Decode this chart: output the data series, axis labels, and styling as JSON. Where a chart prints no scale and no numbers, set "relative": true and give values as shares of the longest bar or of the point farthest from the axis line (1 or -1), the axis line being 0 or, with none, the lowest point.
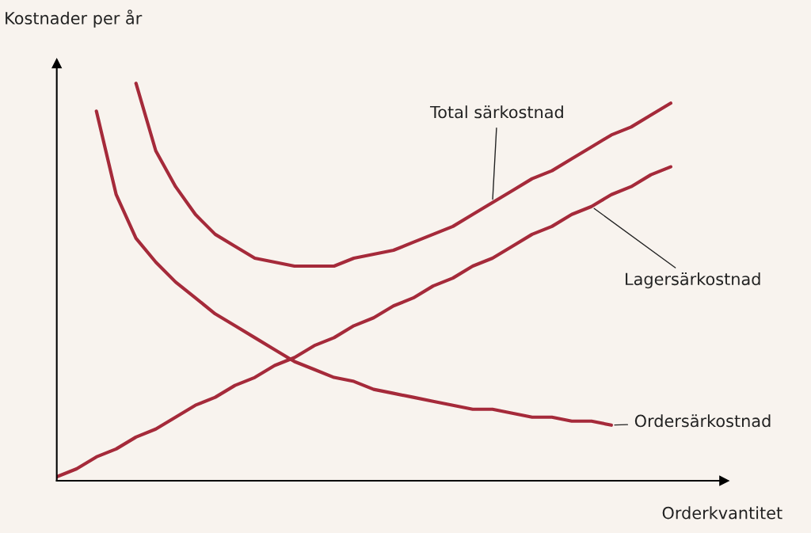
{
  "chart_data": {
    "type": "line",
    "relative": true,
    "xlabel": "Orderkvantitet",
    "ylabel": "Kostnader per år",
    "categories": [
      null,
      null,
      null,
      null,
      null,
      null,
      null,
      null,
      null,
      null,
      null,
      null,
      null,
      null,
      null,
      null,
      null,
      null,
      null,
      null,
      null,
      null,
      null,
      null,
      null,
      null,
      null,
      null,
      null,
      null,
      null,
      null
    ],
    "series": [
      {
        "name": "Total särkostnad",
        "color": "#a52a3a",
        "values": [
          null,
          null,
          null,
          null,
          1.0,
          0.83,
          0.74,
          0.67,
          0.62,
          0.59,
          0.56,
          0.55,
          0.54,
          0.54,
          0.54,
          0.56,
          0.57,
          0.58,
          0.6,
          0.62,
          0.64,
          0.67,
          0.7,
          0.73,
          0.76,
          0.78,
          0.81,
          0.84,
          0.87,
          0.89,
          0.92,
          0.95
        ]
      },
      {
        "name": "Ordersärkostnad",
        "color": "#a52a3a",
        "values": [
          null,
          null,
          0.93,
          0.72,
          0.61,
          0.55,
          0.5,
          0.46,
          0.42,
          0.39,
          0.36,
          0.33,
          0.3,
          0.28,
          0.26,
          0.25,
          0.23,
          0.22,
          0.21,
          0.2,
          0.19,
          0.18,
          0.18,
          0.17,
          0.16,
          0.16,
          0.15,
          0.15,
          0.14,
          null,
          null,
          null
        ]
      },
      {
        "name": "Lagersärkostnad",
        "color": "#a52a3a",
        "values": [
          0.01,
          0.03,
          0.06,
          0.08,
          0.11,
          0.13,
          0.16,
          0.19,
          0.21,
          0.24,
          0.26,
          0.29,
          0.31,
          0.34,
          0.36,
          0.39,
          0.41,
          0.44,
          0.46,
          0.49,
          0.51,
          0.54,
          0.56,
          0.59,
          0.62,
          0.64,
          0.67,
          0.69,
          0.72,
          0.74,
          0.77,
          0.79
        ]
      }
    ],
    "legend": false,
    "grid": false,
    "marker": "none",
    "line_style": "solid"
  }
}
